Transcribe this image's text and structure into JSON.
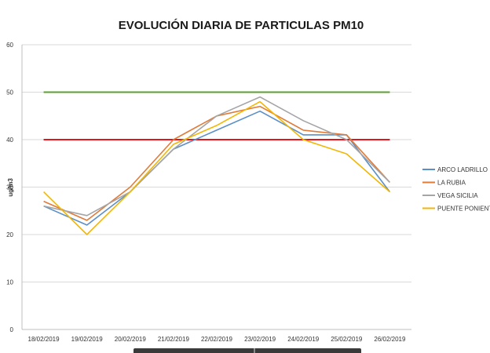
{
  "chart_data": {
    "type": "line",
    "title": "EVOLUCIÓN DIARIA DE PARTICULAS PM10",
    "ylabel": "ug/m3",
    "xlabel": "",
    "ylim": [
      0,
      60
    ],
    "yticks": [
      0,
      10,
      20,
      30,
      40,
      50,
      60
    ],
    "grid": true,
    "legend_position": "right",
    "categories": [
      "18/02/2019",
      "19/02/2019",
      "20/02/2019",
      "21/02/2019",
      "22/02/2019",
      "23/02/2019",
      "24/02/2019",
      "25/02/2019",
      "26/02/2019"
    ],
    "series": [
      {
        "name": "ARCO LADRILLO",
        "color": "#5b8fc7",
        "values": [
          26,
          22,
          29,
          38,
          42,
          46,
          41,
          41,
          29
        ]
      },
      {
        "name": "LA RUBIA",
        "color": "#e07b39",
        "values": [
          27,
          23,
          30,
          40,
          45,
          47,
          42,
          41,
          31
        ]
      },
      {
        "name": "VEGA SICILIA",
        "color": "#a5a5a5",
        "values": [
          26,
          24,
          29,
          38,
          45,
          49,
          44,
          40,
          31
        ]
      },
      {
        "name": "PUENTE PONIENTE",
        "color": "#f2b705",
        "values": [
          29,
          20,
          29,
          39,
          43,
          48,
          40,
          37,
          29
        ]
      }
    ],
    "reference_lines": [
      {
        "value": 50,
        "color": "#5aa02c"
      },
      {
        "value": 40,
        "color": "#e8141b"
      }
    ]
  }
}
